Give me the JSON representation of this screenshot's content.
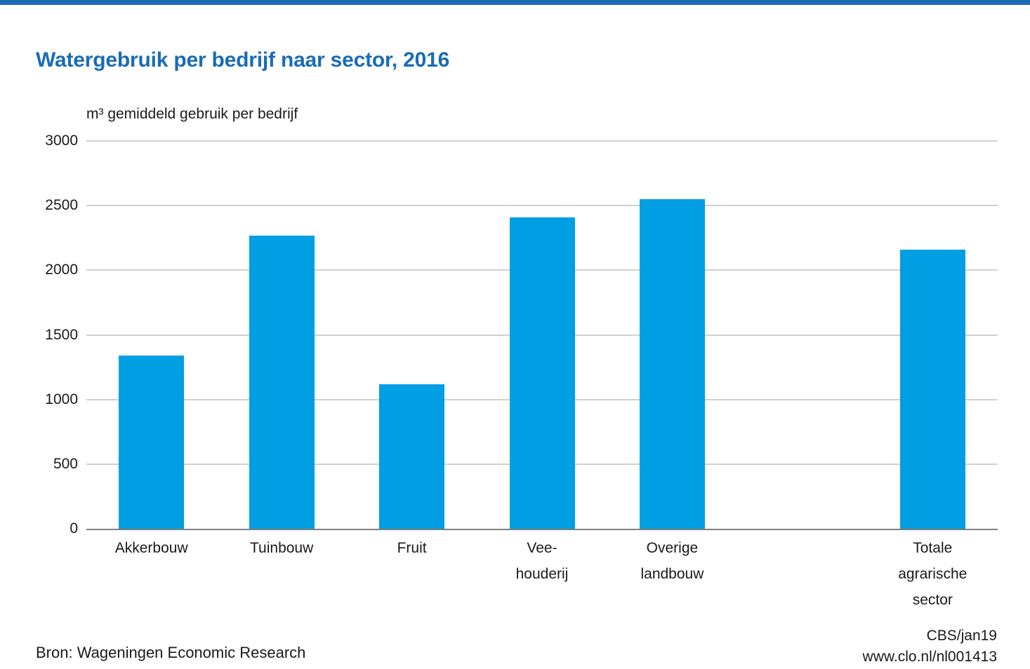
{
  "page": {
    "background": "#ffffff",
    "accent_bar_color": "#1a6cb5"
  },
  "title": "Watergebruik per bedrijf naar sector, 2016",
  "title_color": "#1a6cb5",
  "axis_title": "m³ gemiddeld gebruik per bedrijf",
  "footer": {
    "source": "Bron: Wageningen Economic Research",
    "credit": "CBS/jan19",
    "url": "www.clo.nl/nl001413"
  },
  "chart_data": {
    "type": "bar",
    "title": "Watergebruik per bedrijf naar sector, 2016",
    "ylabel": "m³ gemiddeld gebruik per bedrijf",
    "categories": [
      "Akkerbouw",
      "Tuinbouw",
      "Fruit",
      "Vee-houderij",
      "Overige landbouw",
      "Totale agrarische sector"
    ],
    "category_label_lines": [
      [
        "Akkerbouw"
      ],
      [
        "Tuinbouw"
      ],
      [
        "Fruit"
      ],
      [
        "Vee-",
        "houderij"
      ],
      [
        "Overige",
        "landbouw"
      ],
      [
        "Totale",
        "agrarische",
        "sector"
      ]
    ],
    "values": [
      1340,
      2270,
      1120,
      2410,
      2550,
      2160
    ],
    "slot_indices": [
      0,
      1,
      2,
      3,
      4,
      6
    ],
    "slot_count": 7,
    "ylim": [
      0,
      3000
    ],
    "yticks": [
      0,
      500,
      1000,
      1500,
      2000,
      2500,
      3000
    ],
    "bar_color": "#009ee3",
    "gridline_color": "#d0d0d0",
    "axisline_color": "#7f7f7f",
    "grid": true,
    "legend": "none"
  }
}
